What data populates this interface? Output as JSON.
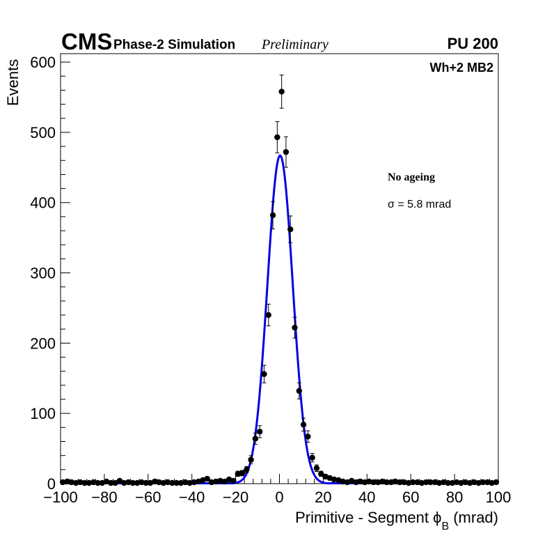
{
  "header": {
    "experiment": "CMS",
    "simulation": "Phase-2 Simulation",
    "status": "Preliminary",
    "pileup": "PU 200",
    "chamber": "Wh+2 MB2"
  },
  "annotations": {
    "condition": "No ageing",
    "sigma_symbol": "σ",
    "sigma_text": " = 5.8 mrad"
  },
  "chart_data": {
    "type": "scatter",
    "xlabel": "Primitive - Segment ϕ",
    "xlabel_sub": "B",
    "xlabel_unit": " (mrad)",
    "ylabel": "Events",
    "xlim": [
      -100,
      100
    ],
    "ylim": [
      0,
      612
    ],
    "x_ticks": [
      "−100",
      "−80",
      "−60",
      "−40",
      "−20",
      "0",
      "20",
      "40",
      "60",
      "80",
      "100"
    ],
    "y_ticks": [
      "0",
      "100",
      "200",
      "300",
      "400",
      "500",
      "600"
    ],
    "grid": false,
    "colors": {
      "points": "#000000",
      "fit": "#0000e6"
    },
    "series": [
      {
        "type": "points",
        "x": [
          -99,
          -97,
          -95,
          -93,
          -91,
          -89,
          -87,
          -85,
          -83,
          -81,
          -79,
          -77,
          -75,
          -73,
          -71,
          -69,
          -67,
          -65,
          -63,
          -61,
          -59,
          -57,
          -55,
          -53,
          -51,
          -49,
          -47,
          -45,
          -43,
          -41,
          -39,
          -37,
          -35,
          -33,
          -31,
          -29,
          -27,
          -25,
          -23,
          -21,
          -19,
          -17,
          -15,
          -13,
          -11,
          -9,
          -7,
          -5,
          -3,
          -1,
          1,
          3,
          5,
          7,
          9,
          11,
          13,
          15,
          17,
          19,
          21,
          23,
          25,
          27,
          29,
          31,
          33,
          35,
          37,
          39,
          41,
          43,
          45,
          47,
          49,
          51,
          53,
          55,
          57,
          59,
          61,
          63,
          65,
          67,
          69,
          71,
          73,
          75,
          77,
          79,
          81,
          83,
          85,
          87,
          89,
          91,
          93,
          95,
          97,
          99
        ],
        "y": [
          2,
          3,
          2,
          1,
          2,
          1,
          1,
          2,
          0,
          1,
          3,
          1,
          1,
          4,
          1,
          2,
          1,
          1,
          2,
          1,
          1,
          3,
          2,
          1,
          2,
          1,
          1,
          1,
          2,
          1,
          2,
          3,
          5,
          7,
          2,
          3,
          4,
          3,
          6,
          4,
          14,
          15,
          20,
          34,
          64,
          74,
          156,
          240,
          382,
          493,
          558,
          472,
          362,
          222,
          132,
          84,
          67,
          37,
          22,
          14,
          10,
          8,
          6,
          5,
          3,
          2,
          4,
          2,
          3,
          2,
          3,
          2,
          2,
          3,
          2,
          2,
          3,
          2,
          2,
          1,
          2,
          2,
          1,
          2,
          2,
          2,
          1,
          2,
          1,
          1,
          2,
          1,
          2,
          1,
          2,
          1,
          2,
          2,
          1,
          2
        ],
        "yerr": [
          1.4,
          1.7,
          1.4,
          1,
          1.4,
          1,
          1,
          1.4,
          0,
          1,
          1.7,
          1,
          1,
          2,
          1,
          1.4,
          1,
          1,
          1.4,
          1,
          1,
          1.7,
          1.4,
          1,
          1.4,
          1,
          1,
          1,
          1.4,
          1,
          1.4,
          1.7,
          2.2,
          2.6,
          1.4,
          1.7,
          2,
          1.7,
          2.4,
          2,
          3.7,
          3.9,
          4.5,
          5.8,
          8,
          8.6,
          12.5,
          15.5,
          19.5,
          22.2,
          23.6,
          21.7,
          19,
          14.9,
          11.5,
          9.2,
          8.2,
          6.1,
          4.7,
          3.7,
          3.2,
          2.8,
          2.4,
          2.2,
          1.7,
          1.4,
          2,
          1.4,
          1.7,
          1.4,
          1.7,
          1.4,
          1.4,
          1.7,
          1.4,
          1.4,
          1.7,
          1.4,
          1.4,
          1,
          1.4,
          1.4,
          1,
          1.4,
          1.4,
          1.4,
          1,
          1.4,
          1,
          1,
          1.4,
          1,
          1.4,
          1,
          1.4,
          1,
          1.4,
          1.4,
          1,
          1.4
        ]
      },
      {
        "type": "fit",
        "model": "gaussian",
        "amplitude": 467,
        "mean": 0.3,
        "sigma": 5.8,
        "x_range": [
          -100,
          100
        ]
      }
    ]
  }
}
